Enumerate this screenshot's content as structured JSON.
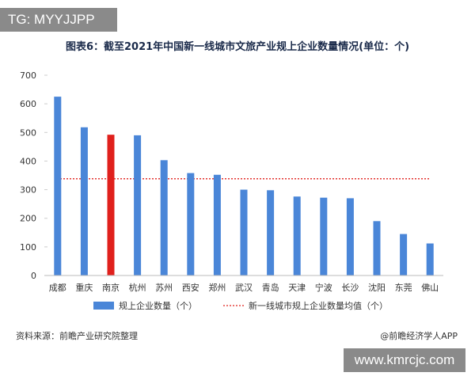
{
  "tag_badge": "TG: MYYJJPP",
  "footer": {
    "source": "资料来源：前瞻产业研究院整理",
    "credit": "@前瞻经济学人APP",
    "site_badge": "www.kmrcjc.com"
  },
  "colors": {
    "bar": "#4a86d8",
    "highlight_bar": "#e0201c",
    "average_line": "#e0201c",
    "grid": "#e6e6e6"
  },
  "chart_data": {
    "type": "bar",
    "title": "图表6：截至2021年中国新一线城市文旅产业规上企业数量情况(单位：个)",
    "categories": [
      "成都",
      "重庆",
      "南京",
      "杭州",
      "苏州",
      "西安",
      "郑州",
      "武汉",
      "青岛",
      "天津",
      "宁波",
      "长沙",
      "沈阳",
      "东莞",
      "佛山"
    ],
    "series": [
      {
        "name": "规上企业数量（个）",
        "values": [
          625,
          518,
          492,
          490,
          403,
          358,
          352,
          300,
          298,
          276,
          272,
          270,
          190,
          145,
          112
        ]
      }
    ],
    "highlight_category": "南京",
    "average": {
      "name": "新一线城市规上企业数量均值（个）",
      "value": 338
    },
    "ylim": [
      0,
      700
    ],
    "yticks": [
      0,
      100,
      200,
      300,
      400,
      500,
      600,
      700
    ],
    "grid": false,
    "legend_position": "bottom"
  }
}
